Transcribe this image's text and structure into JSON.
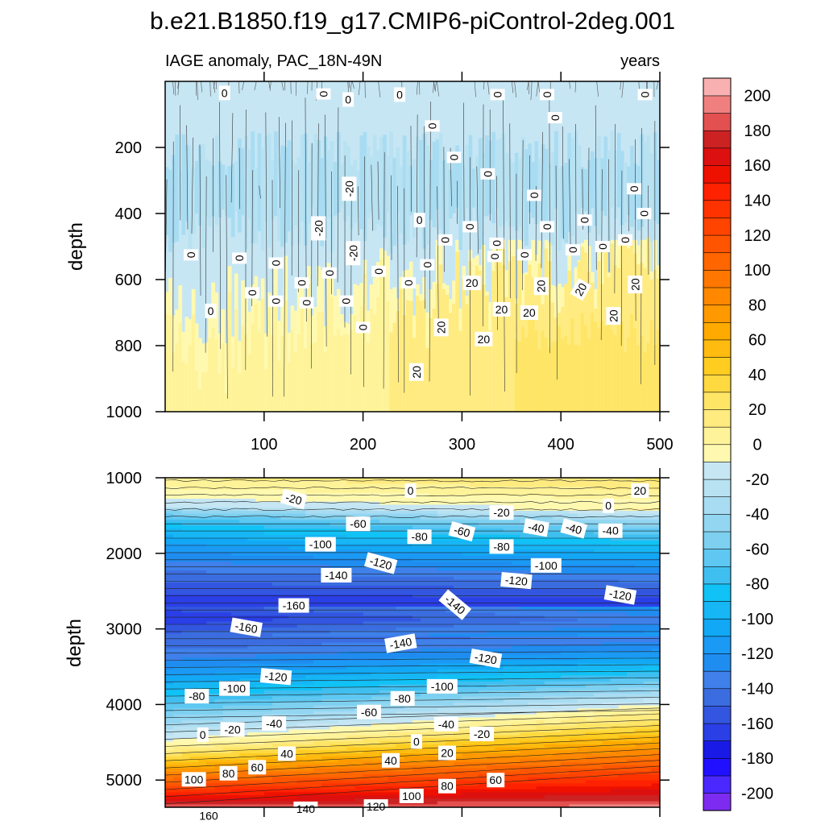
{
  "chart_data": {
    "type": "contour",
    "title": "b.e21.B1850.f19_g17.CMIP6-piControl-2deg.001",
    "left_string": "IAGE anomaly, PAC_18N-49N",
    "right_string": "years",
    "ylabel": "depth",
    "colorbar": {
      "levels": [
        -200,
        -190,
        -180,
        -170,
        -160,
        -150,
        -140,
        -130,
        -120,
        -110,
        -100,
        -90,
        -80,
        -70,
        -60,
        -50,
        -40,
        -30,
        -20,
        -10,
        0,
        10,
        20,
        30,
        40,
        50,
        60,
        70,
        80,
        90,
        100,
        110,
        120,
        130,
        140,
        150,
        160,
        170,
        180,
        190,
        200
      ],
      "tick_labels": [
        "-200",
        "-180",
        "-160",
        "-140",
        "-120",
        "-100",
        "-80",
        "-60",
        "-40",
        "-20",
        "0",
        "20",
        "40",
        "60",
        "80",
        "100",
        "120",
        "140",
        "160",
        "180",
        "200"
      ],
      "colors": [
        "#7d2bf0",
        "#4a28ff",
        "#2010ff",
        "#1a1ae6",
        "#2a3fe6",
        "#3356e0",
        "#3b6de0",
        "#3f80ea",
        "#1f8cf0",
        "#1a9af5",
        "#12a8f5",
        "#17b6f5",
        "#10c2f5",
        "#3fbff0",
        "#5ec8f2",
        "#7dd0f0",
        "#93d6f2",
        "#a8dcf2",
        "#b8e2f2",
        "#c6e6f4",
        "#fff9b0",
        "#fff39a",
        "#ffeb80",
        "#ffe566",
        "#ffd940",
        "#ffcc20",
        "#ffbb10",
        "#ffaa00",
        "#ff9900",
        "#ff8800",
        "#ff7700",
        "#ff6600",
        "#ff5500",
        "#ff4400",
        "#ff3300",
        "#ff2200",
        "#ee1100",
        "#dd1010",
        "#cc2222",
        "#e35050",
        "#f08080",
        "#f8b0b0"
      ]
    },
    "panels": [
      {
        "name": "upper-panel",
        "xlim": [
          0,
          500
        ],
        "ylim": [
          1000,
          0
        ],
        "x_ticks": [
          100,
          200,
          300,
          400,
          500
        ],
        "x_tick_labels": [
          "100",
          "200",
          "300",
          "400",
          "500"
        ],
        "y_ticks": [
          200,
          400,
          600,
          800,
          1000
        ],
        "y_tick_labels": [
          "200",
          "400",
          "600",
          "800",
          "1000"
        ],
        "contour_labels": [
          {
            "x": 60,
            "y": 35,
            "text": "0",
            "angle": 0
          },
          {
            "x": 160,
            "y": 38,
            "text": "0",
            "angle": 90
          },
          {
            "x": 185,
            "y": 55,
            "text": "0",
            "angle": 0
          },
          {
            "x": 237,
            "y": 40,
            "text": "0",
            "angle": 0
          },
          {
            "x": 336,
            "y": 40,
            "text": "0",
            "angle": 90
          },
          {
            "x": 386,
            "y": 40,
            "text": "0",
            "angle": 90
          },
          {
            "x": 485,
            "y": 40,
            "text": "0",
            "angle": 90
          },
          {
            "x": 394,
            "y": 110,
            "text": "0",
            "angle": 90
          },
          {
            "x": 270,
            "y": 135,
            "text": "0",
            "angle": 90
          },
          {
            "x": 292,
            "y": 230,
            "text": "0",
            "angle": 90
          },
          {
            "x": 326,
            "y": 280,
            "text": "0",
            "angle": 90
          },
          {
            "x": 186,
            "y": 325,
            "text": "-20",
            "angle": 90
          },
          {
            "x": 373,
            "y": 345,
            "text": "0",
            "angle": 90
          },
          {
            "x": 474,
            "y": 325,
            "text": "0",
            "angle": 90
          },
          {
            "x": 155,
            "y": 445,
            "text": "-20",
            "angle": 90
          },
          {
            "x": 484,
            "y": 400,
            "text": "0",
            "angle": 90
          },
          {
            "x": 257,
            "y": 420,
            "text": "0",
            "angle": 0
          },
          {
            "x": 308,
            "y": 440,
            "text": "0",
            "angle": 90
          },
          {
            "x": 386,
            "y": 440,
            "text": "0",
            "angle": 90
          },
          {
            "x": 424,
            "y": 420,
            "text": "0",
            "angle": 90
          },
          {
            "x": 283,
            "y": 480,
            "text": "0",
            "angle": 90
          },
          {
            "x": 335,
            "y": 490,
            "text": "0",
            "angle": 90
          },
          {
            "x": 412,
            "y": 510,
            "text": "0",
            "angle": 90
          },
          {
            "x": 442,
            "y": 500,
            "text": "0",
            "angle": 90
          },
          {
            "x": 465,
            "y": 480,
            "text": "0",
            "angle": 90
          },
          {
            "x": 190,
            "y": 520,
            "text": "-20",
            "angle": 90
          },
          {
            "x": 26,
            "y": 525,
            "text": "0",
            "angle": 90
          },
          {
            "x": 75,
            "y": 535,
            "text": "0",
            "angle": 90
          },
          {
            "x": 112,
            "y": 550,
            "text": "0",
            "angle": 90
          },
          {
            "x": 333,
            "y": 530,
            "text": "0",
            "angle": 90
          },
          {
            "x": 363,
            "y": 525,
            "text": "0",
            "angle": 90
          },
          {
            "x": 216,
            "y": 575,
            "text": "0",
            "angle": 90
          },
          {
            "x": 265,
            "y": 555,
            "text": "0",
            "angle": 90
          },
          {
            "x": 166,
            "y": 580,
            "text": "0",
            "angle": 90
          },
          {
            "x": 138,
            "y": 610,
            "text": "0",
            "angle": 90
          },
          {
            "x": 246,
            "y": 610,
            "text": "0",
            "angle": 90
          },
          {
            "x": 310,
            "y": 610,
            "text": "20",
            "angle": 0
          },
          {
            "x": 380,
            "y": 620,
            "text": "20",
            "angle": 90
          },
          {
            "x": 420,
            "y": 630,
            "text": "20",
            "angle": 60
          },
          {
            "x": 475,
            "y": 615,
            "text": "20",
            "angle": 90
          },
          {
            "x": 88,
            "y": 640,
            "text": "0",
            "angle": 90
          },
          {
            "x": 112,
            "y": 665,
            "text": "0",
            "angle": 90
          },
          {
            "x": 143,
            "y": 670,
            "text": "0",
            "angle": 90
          },
          {
            "x": 183,
            "y": 665,
            "text": "0",
            "angle": 90
          },
          {
            "x": 46,
            "y": 695,
            "text": "0",
            "angle": 0
          },
          {
            "x": 340,
            "y": 690,
            "text": "20",
            "angle": 0
          },
          {
            "x": 368,
            "y": 700,
            "text": "20",
            "angle": 0
          },
          {
            "x": 453,
            "y": 710,
            "text": "20",
            "angle": 90
          },
          {
            "x": 279,
            "y": 745,
            "text": "20",
            "angle": 90
          },
          {
            "x": 200,
            "y": 745,
            "text": "0",
            "angle": 90
          },
          {
            "x": 322,
            "y": 780,
            "text": "20",
            "angle": 0
          },
          {
            "x": 254,
            "y": 880,
            "text": "20",
            "angle": 90
          }
        ]
      },
      {
        "name": "lower-panel",
        "xlim": [
          0,
          500
        ],
        "ylim": [
          5360,
          1000
        ],
        "x_ticks": [
          100,
          200,
          300,
          400,
          500
        ],
        "y_ticks": [
          1000,
          2000,
          3000,
          4000,
          5000
        ],
        "y_tick_labels": [
          "1000",
          "2000",
          "3000",
          "4000",
          "5000"
        ],
        "contour_labels": [
          {
            "x": 130,
            "y": 1280,
            "text": "-20",
            "angle": -15
          },
          {
            "x": 248,
            "y": 1170,
            "text": "0",
            "angle": 0
          },
          {
            "x": 480,
            "y": 1170,
            "text": "20",
            "angle": 0
          },
          {
            "x": 340,
            "y": 1460,
            "text": "-20",
            "angle": 0
          },
          {
            "x": 448,
            "y": 1370,
            "text": "0",
            "angle": 0
          },
          {
            "x": 195,
            "y": 1610,
            "text": "-60",
            "angle": 0
          },
          {
            "x": 257,
            "y": 1780,
            "text": "-80",
            "angle": 0
          },
          {
            "x": 300,
            "y": 1710,
            "text": "-60",
            "angle": -15
          },
          {
            "x": 375,
            "y": 1660,
            "text": "-40",
            "angle": -10
          },
          {
            "x": 413,
            "y": 1670,
            "text": "-40",
            "angle": -15
          },
          {
            "x": 450,
            "y": 1700,
            "text": "-40",
            "angle": 0
          },
          {
            "x": 157,
            "y": 1880,
            "text": "-100",
            "angle": 0
          },
          {
            "x": 340,
            "y": 1910,
            "text": "-80",
            "angle": 0
          },
          {
            "x": 218,
            "y": 2130,
            "text": "-120",
            "angle": -15
          },
          {
            "x": 173,
            "y": 2290,
            "text": "-140",
            "angle": 0
          },
          {
            "x": 385,
            "y": 2160,
            "text": "-100",
            "angle": 0
          },
          {
            "x": 355,
            "y": 2360,
            "text": "-120",
            "angle": -5
          },
          {
            "x": 460,
            "y": 2550,
            "text": "-120",
            "angle": -10
          },
          {
            "x": 130,
            "y": 2690,
            "text": "-160",
            "angle": 0
          },
          {
            "x": 293,
            "y": 2680,
            "text": "-140",
            "angle": -40
          },
          {
            "x": 82,
            "y": 2980,
            "text": "-160",
            "angle": -10
          },
          {
            "x": 238,
            "y": 3190,
            "text": "-140",
            "angle": 10
          },
          {
            "x": 324,
            "y": 3390,
            "text": "-120",
            "angle": -10
          },
          {
            "x": 112,
            "y": 3630,
            "text": "-120",
            "angle": -5
          },
          {
            "x": 70,
            "y": 3790,
            "text": "-100",
            "angle": 0
          },
          {
            "x": 280,
            "y": 3760,
            "text": "-100",
            "angle": 0
          },
          {
            "x": 32,
            "y": 3890,
            "text": "-80",
            "angle": 0
          },
          {
            "x": 240,
            "y": 3920,
            "text": "-80",
            "angle": 0
          },
          {
            "x": 206,
            "y": 4100,
            "text": "-60",
            "angle": 0
          },
          {
            "x": 110,
            "y": 4250,
            "text": "-40",
            "angle": 0
          },
          {
            "x": 284,
            "y": 4260,
            "text": "-40",
            "angle": 0
          },
          {
            "x": 68,
            "y": 4330,
            "text": "-20",
            "angle": 0
          },
          {
            "x": 320,
            "y": 4390,
            "text": "-20",
            "angle": 0
          },
          {
            "x": 38,
            "y": 4400,
            "text": "0",
            "angle": 0
          },
          {
            "x": 254,
            "y": 4490,
            "text": "0",
            "angle": 0
          },
          {
            "x": 123,
            "y": 4650,
            "text": "40",
            "angle": 0
          },
          {
            "x": 285,
            "y": 4640,
            "text": "20",
            "angle": 0
          },
          {
            "x": 228,
            "y": 4740,
            "text": "40",
            "angle": 0
          },
          {
            "x": 93,
            "y": 4830,
            "text": "60",
            "angle": 0
          },
          {
            "x": 64,
            "y": 4910,
            "text": "80",
            "angle": 0
          },
          {
            "x": 334,
            "y": 5000,
            "text": "60",
            "angle": 0
          },
          {
            "x": 29,
            "y": 4990,
            "text": "100",
            "angle": 0
          },
          {
            "x": 285,
            "y": 5080,
            "text": "80",
            "angle": 0
          },
          {
            "x": 249,
            "y": 5210,
            "text": "100",
            "angle": 0
          },
          {
            "x": 213,
            "y": 5350,
            "text": "120",
            "angle": 0
          },
          {
            "x": 142,
            "y": 5380,
            "text": "140",
            "angle": 0
          },
          {
            "x": 44,
            "y": 5470,
            "text": "160",
            "angle": 0
          }
        ]
      }
    ]
  }
}
